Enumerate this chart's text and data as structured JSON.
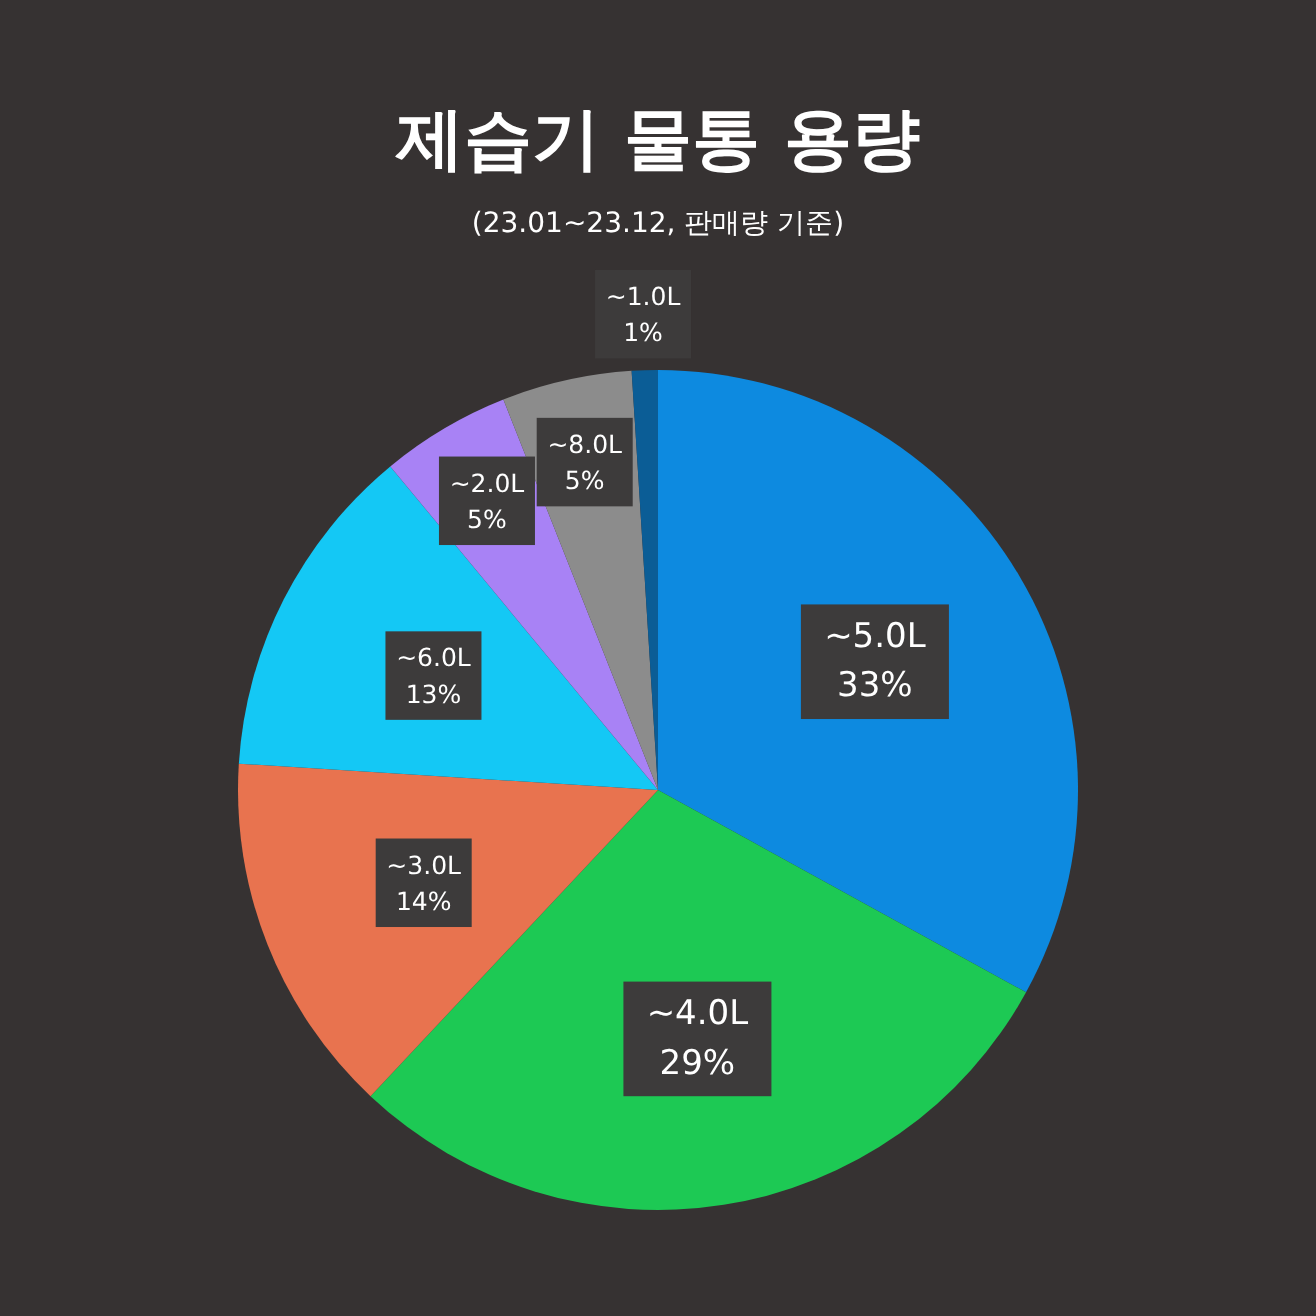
{
  "chart_data": {
    "type": "pie",
    "title": "제습기 물통 용량",
    "subtitle": "(23.01~23.12, 판매량 기준)",
    "categories": [
      "~5.0L",
      "~4.0L",
      "~3.0L",
      "~6.0L",
      "~2.0L",
      "~8.0L",
      "~1.0L"
    ],
    "values": [
      33,
      29,
      14,
      13,
      5,
      5,
      1
    ],
    "value_labels": [
      "33%",
      "29%",
      "14%",
      "13%",
      "5%",
      "5%",
      "1%"
    ],
    "colors": [
      "#0d8ae0",
      "#1dc954",
      "#e8734f",
      "#14c8f5",
      "#a882f5",
      "#8c8c8c",
      "#0b5d96"
    ]
  }
}
